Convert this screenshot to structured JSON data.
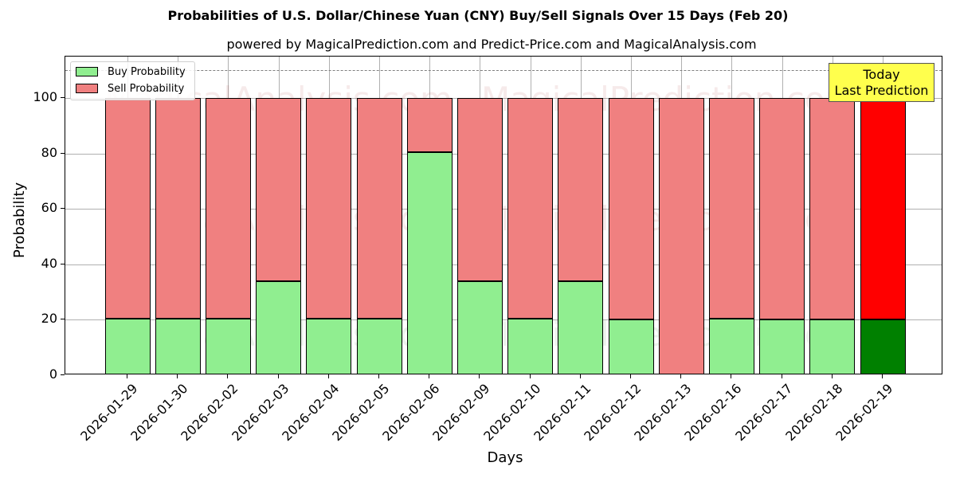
{
  "chart": {
    "title": "Probabilities of U.S. Dollar/Chinese Yuan (CNY) Buy/Sell Signals Over 15 Days (Feb 20)",
    "subtitle": "powered by MagicalPrediction.com and Predict-Price.com and MagicalAnalysis.com",
    "xlabel": "Days",
    "ylabel": "Probability",
    "yticks": [
      "0",
      "20",
      "40",
      "60",
      "80",
      "100"
    ],
    "legend": {
      "buy": "Buy Probability",
      "sell": "Sell Probability"
    },
    "annotation": {
      "line1": "Today",
      "line2": "Last Prediction"
    },
    "watermarks": [
      "MagicalAnalysis.com",
      "MagicalPrediction.com"
    ],
    "colors": {
      "buy": "#90ee90",
      "sell": "#f08080",
      "buy_today": "#008000",
      "sell_today": "#ff0000",
      "annotation_bg": "#ffff4d"
    }
  },
  "chart_data": {
    "type": "bar",
    "stacked": true,
    "title": "Probabilities of U.S. Dollar/Chinese Yuan (CNY) Buy/Sell Signals Over 15 Days (Feb 20)",
    "subtitle": "powered by MagicalPrediction.com and Predict-Price.com and MagicalAnalysis.com",
    "xlabel": "Days",
    "ylabel": "Probability",
    "ylim": [
      0,
      115
    ],
    "yticks": [
      0,
      20,
      40,
      60,
      80,
      100
    ],
    "reference_line": {
      "y": 110,
      "style": "dashed"
    },
    "grid": true,
    "legend_position": "upper left",
    "categories": [
      "2026-01-29",
      "2026-01-30",
      "2026-02-02",
      "2026-02-03",
      "2026-02-04",
      "2026-02-05",
      "2026-02-06",
      "2026-02-09",
      "2026-02-10",
      "2026-02-11",
      "2026-02-12",
      "2026-02-13",
      "2026-02-16",
      "2026-02-17",
      "2026-02-18",
      "2026-02-19"
    ],
    "series": [
      {
        "name": "Buy Probability",
        "values": [
          20.3,
          20.3,
          20.3,
          34.0,
          20.3,
          20.3,
          80.6,
          34.0,
          20.3,
          34.0,
          20.0,
          0,
          20.3,
          20.0,
          20.0,
          20.0
        ]
      },
      {
        "name": "Sell Probability",
        "values": [
          79.7,
          79.7,
          79.7,
          66.0,
          79.7,
          79.7,
          19.4,
          66.0,
          79.7,
          66.0,
          80.0,
          100,
          79.7,
          80.0,
          80.0,
          80.0
        ]
      }
    ],
    "annotations": [
      {
        "text": "Today\nLast Prediction",
        "x": "2026-02-19"
      }
    ]
  }
}
